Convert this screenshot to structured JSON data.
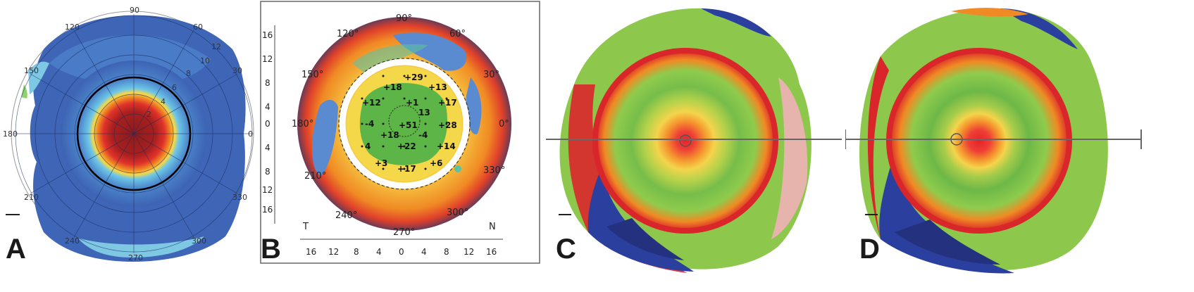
{
  "panels": {
    "a": {
      "letter": "A",
      "angle_labels": [
        "90",
        "120",
        "60",
        "150",
        "30",
        "180",
        "0",
        "210",
        "330",
        "240",
        "300",
        "270"
      ],
      "ring_labels": [
        "2",
        "4",
        "6",
        "8",
        "10",
        "12"
      ]
    },
    "b": {
      "letter": "B",
      "angle_labels": [
        "90°",
        "120°",
        "60°",
        "150°",
        "30°",
        "180°",
        "0°",
        "210°",
        "330°",
        "240°",
        "300°",
        "270°"
      ],
      "left_ticks": [
        "16",
        "12",
        "8",
        "4",
        "0",
        "4",
        "8",
        "12",
        "16"
      ],
      "bottom_ticks": [
        "16",
        "12",
        "8",
        "4",
        "0",
        "4",
        "8",
        "12",
        "16"
      ],
      "corner_t": "T",
      "corner_n": "N",
      "values": [
        "+29",
        "+18",
        "+13",
        "+12",
        "+1",
        "+17",
        "13",
        "-4",
        "+51",
        "-4",
        "+28",
        "+18",
        "+22",
        "4",
        "+14",
        "+3",
        "+6",
        "+17"
      ]
    },
    "c": {
      "letter": "C"
    },
    "d": {
      "letter": "D"
    }
  },
  "colors": {
    "hot": "#d9262b",
    "warm": "#f08a24",
    "yellow": "#f5d84a",
    "green": "#69b84a",
    "cyan": "#6cc6e6",
    "blue": "#3a5fb0",
    "navy": "#24317e"
  }
}
